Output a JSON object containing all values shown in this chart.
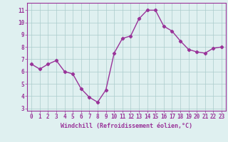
{
  "x": [
    0,
    1,
    2,
    3,
    4,
    5,
    6,
    7,
    8,
    9,
    10,
    11,
    12,
    13,
    14,
    15,
    16,
    17,
    18,
    19,
    20,
    21,
    22,
    23
  ],
  "y": [
    6.6,
    6.2,
    6.6,
    6.9,
    6.0,
    5.8,
    4.6,
    3.9,
    3.5,
    4.5,
    7.5,
    8.7,
    8.9,
    10.3,
    11.0,
    11.0,
    9.7,
    9.3,
    8.5,
    7.8,
    7.6,
    7.5,
    7.9,
    8.0
  ],
  "line_color": "#993399",
  "marker": "D",
  "marker_size": 2.2,
  "line_width": 1.0,
  "bg_color": "#dff0f0",
  "grid_color": "#aacccc",
  "xlabel": "Windchill (Refroidissement éolien,°C)",
  "xlabel_color": "#993399",
  "ylim": [
    2.8,
    11.6
  ],
  "xlim": [
    -0.5,
    23.5
  ],
  "yticks": [
    3,
    4,
    5,
    6,
    7,
    8,
    9,
    10,
    11
  ],
  "xticks": [
    0,
    1,
    2,
    3,
    4,
    5,
    6,
    7,
    8,
    9,
    10,
    11,
    12,
    13,
    14,
    15,
    16,
    17,
    18,
    19,
    20,
    21,
    22,
    23
  ],
  "tick_color": "#993399",
  "tick_fontsize": 5.5,
  "xlabel_fontsize": 6.0,
  "spine_color": "#993399"
}
